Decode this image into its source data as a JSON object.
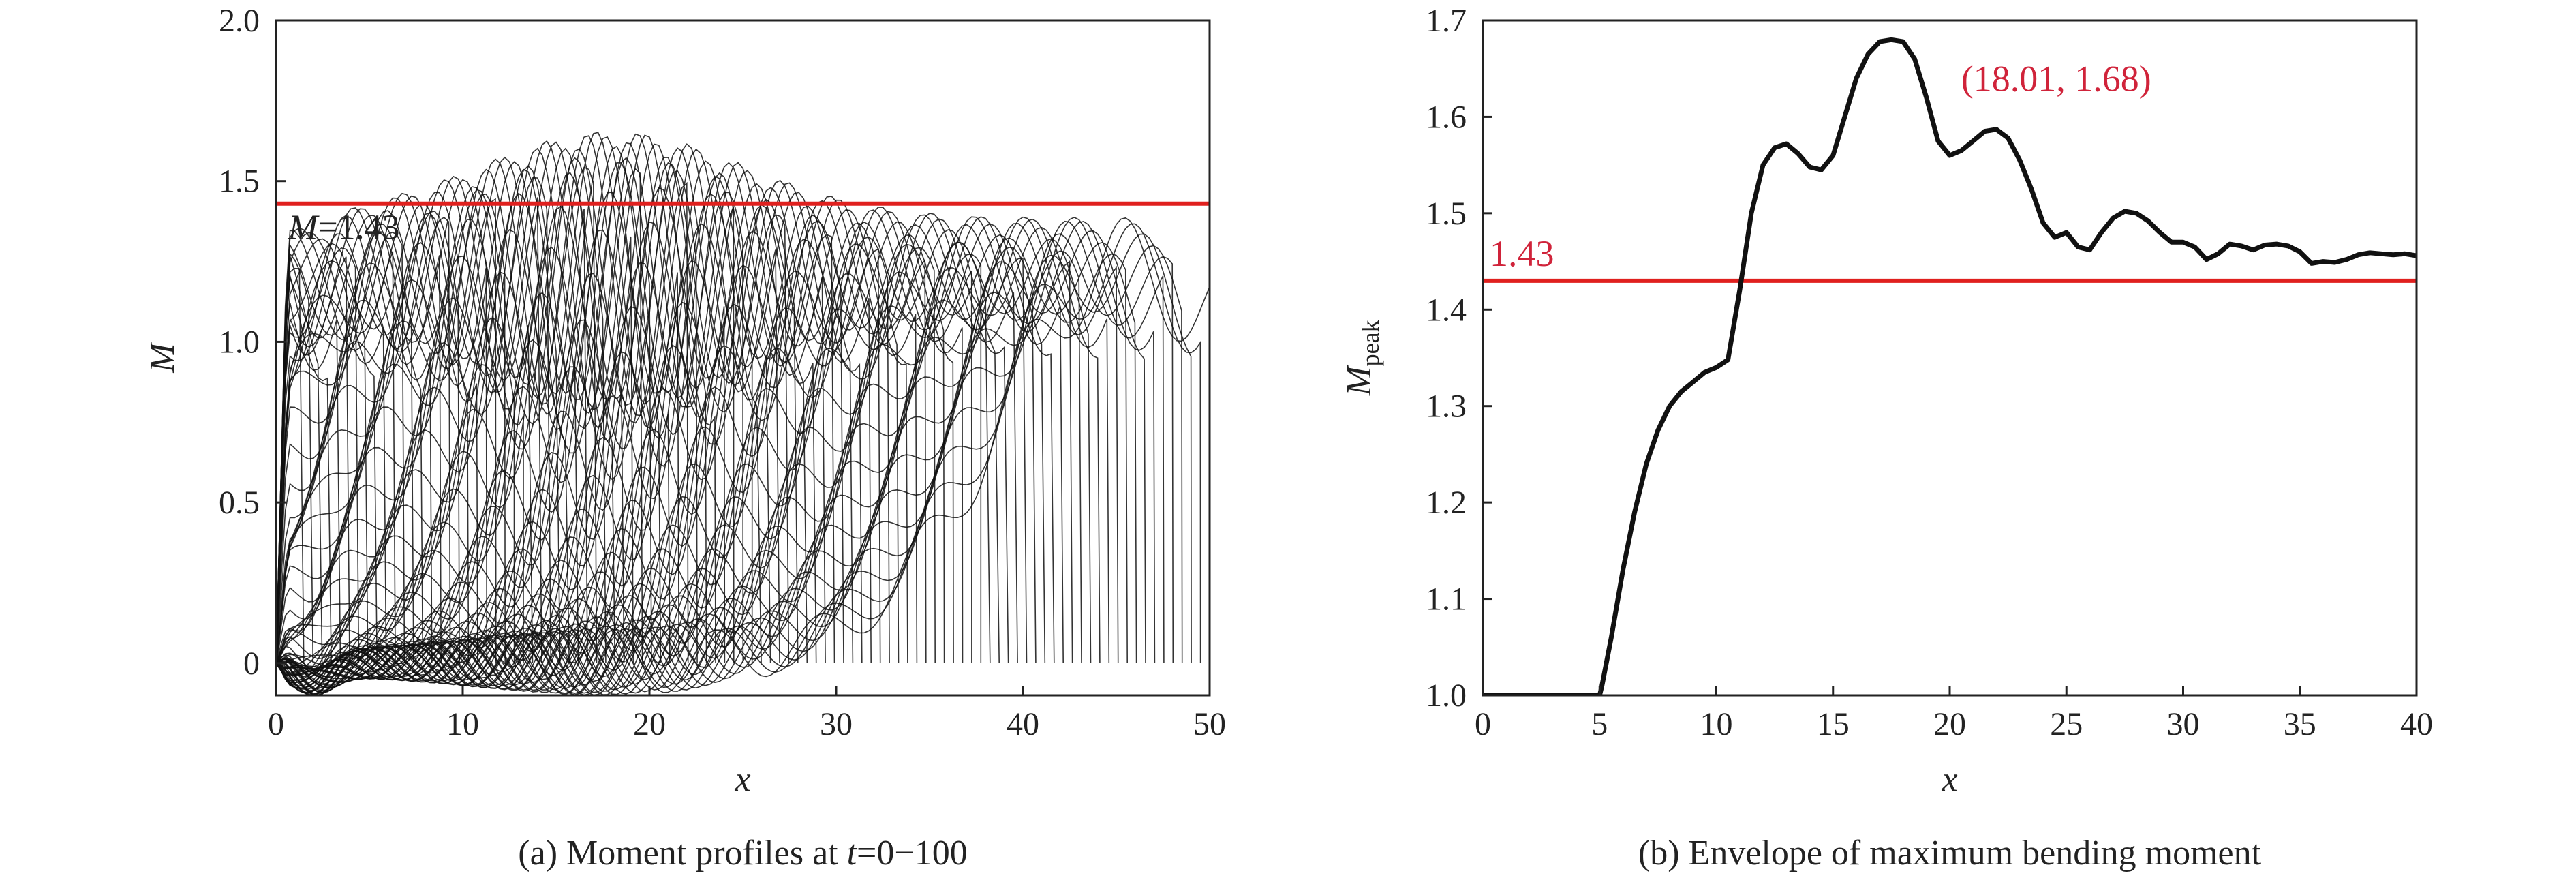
{
  "chart_data": [
    {
      "type": "line",
      "caption_prefix": "(a) Moment profiles at ",
      "caption_var": "t",
      "caption_suffix": "=0−100",
      "xlabel": "x",
      "ylabel": "M",
      "xlim": [
        0,
        50
      ],
      "ylim": [
        -0.1,
        2.0
      ],
      "xticks": [
        0,
        10,
        20,
        30,
        40,
        50
      ],
      "yticks": [
        0,
        0.5,
        1.0,
        1.5,
        2.0
      ],
      "ytick_labels": [
        "0",
        "0.5",
        "1.0",
        "1.5",
        "2.0"
      ],
      "threshold": {
        "value": 1.43,
        "label_var": "M",
        "label_value": "=1.43",
        "color": "#e0201e"
      },
      "profile_count": 100,
      "grid": false,
      "line_color": "#111111"
    },
    {
      "type": "line",
      "caption": "(b) Envelope of maximum bending moment",
      "xlabel": "x",
      "ylabel_main": "M",
      "ylabel_sub": "peak",
      "xlim": [
        0,
        40
      ],
      "ylim": [
        1.0,
        1.7
      ],
      "xticks": [
        0,
        5,
        10,
        15,
        20,
        25,
        30,
        35,
        40
      ],
      "yticks": [
        1.0,
        1.1,
        1.2,
        1.3,
        1.4,
        1.5,
        1.6,
        1.7
      ],
      "ytick_labels": [
        "1.0",
        "1.1",
        "1.2",
        "1.3",
        "1.4",
        "1.5",
        "1.6",
        "1.7"
      ],
      "threshold": {
        "value": 1.43,
        "label": "1.43",
        "color": "#e0201e"
      },
      "annotation": {
        "x": 18.01,
        "y": 1.68,
        "label": "(18.01, 1.68)"
      },
      "grid": false,
      "series": [
        {
          "x": [
            0,
            5.0,
            5.1,
            5.5,
            6,
            6.5,
            7,
            7.5,
            8,
            8.5,
            9,
            9.5,
            10,
            10.5,
            11,
            11.5,
            12,
            12.5,
            13,
            13.5,
            14,
            14.5,
            15,
            15.5,
            16,
            16.5,
            17,
            17.5,
            18,
            18.5,
            19,
            19.5,
            20,
            20.5,
            21,
            21.5,
            22,
            22.5,
            23,
            23.5,
            24,
            24.5,
            25,
            25.5,
            26,
            26.5,
            27,
            27.5,
            28,
            28.5,
            29,
            29.5,
            30,
            30.5,
            31,
            31.5,
            32,
            32.5,
            33,
            33.5,
            34,
            34.5,
            35,
            35.5,
            36,
            36.5,
            37,
            37.5,
            38,
            38.5,
            39,
            39.5,
            40
          ],
          "y": [
            1.0,
            1.0,
            1.01,
            1.06,
            1.13,
            1.19,
            1.24,
            1.275,
            1.3,
            1.315,
            1.325,
            1.335,
            1.34,
            1.348,
            1.42,
            1.5,
            1.55,
            1.568,
            1.572,
            1.562,
            1.548,
            1.545,
            1.56,
            1.6,
            1.64,
            1.665,
            1.678,
            1.68,
            1.678,
            1.66,
            1.62,
            1.575,
            1.56,
            1.565,
            1.575,
            1.585,
            1.587,
            1.578,
            1.555,
            1.525,
            1.49,
            1.475,
            1.48,
            1.465,
            1.462,
            1.48,
            1.495,
            1.502,
            1.5,
            1.492,
            1.48,
            1.47,
            1.47,
            1.465,
            1.452,
            1.458,
            1.468,
            1.466,
            1.462,
            1.467,
            1.468,
            1.466,
            1.46,
            1.448,
            1.45,
            1.449,
            1.452,
            1.457,
            1.459,
            1.458,
            1.457,
            1.458,
            1.456
          ]
        }
      ]
    }
  ]
}
